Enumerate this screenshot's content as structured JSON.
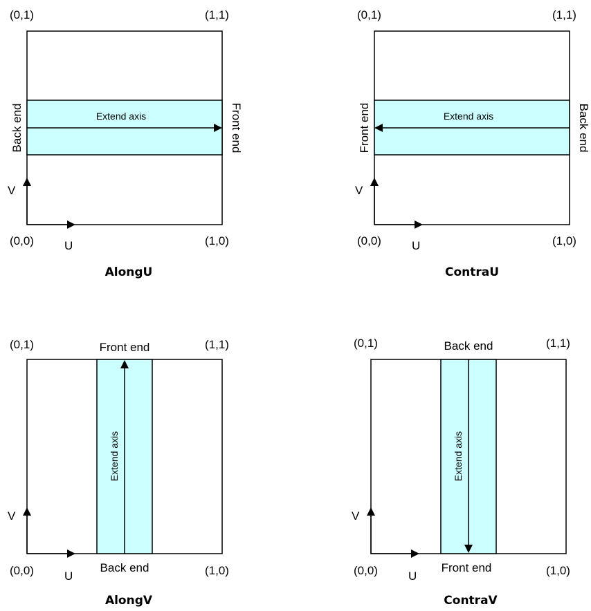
{
  "corners": {
    "bottom_left": "(0,0)",
    "top_left": "(0,1)",
    "top_right": "(1,1)",
    "bottom_right": "(1,0)"
  },
  "axes": {
    "u": "U",
    "v": "V"
  },
  "band_label": "Extend axis",
  "end_labels": {
    "back": "Back end",
    "front": "Front end"
  },
  "captions": {
    "along_u": "AlongU",
    "contra_u": "ContraU",
    "along_v": "AlongV",
    "contra_v": "ContraV"
  },
  "band_color": "#ccffff"
}
